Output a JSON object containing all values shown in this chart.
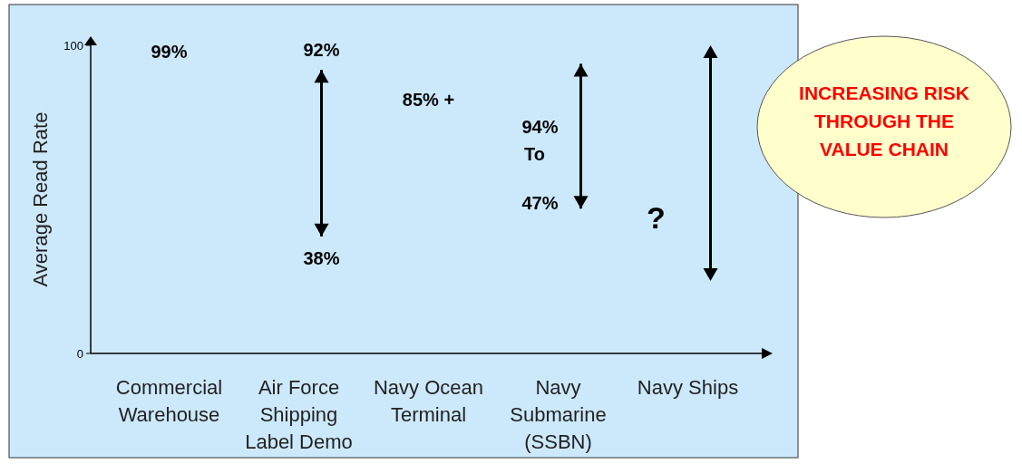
{
  "chart_data": {
    "type": "bar",
    "ylabel": "Average Read Rate",
    "ylim": [
      0,
      100
    ],
    "yticks": [
      0,
      100
    ],
    "categories": [
      "Commercial Warehouse",
      "Air Force Shipping Label Demo",
      "Navy Ocean Terminal",
      "Navy Submarine (SSBN)",
      "Navy Ships"
    ],
    "base": [
      null,
      38,
      null,
      47,
      null
    ],
    "values": [
      null,
      54,
      null,
      47,
      null
    ],
    "color": "#000000",
    "annotations": [
      "99%",
      "92%",
      "38%",
      "85% +",
      "94%",
      "To",
      "47%",
      "?",
      "INCREASING RISK THROUGH THE VALUE CHAIN"
    ]
  }
}
